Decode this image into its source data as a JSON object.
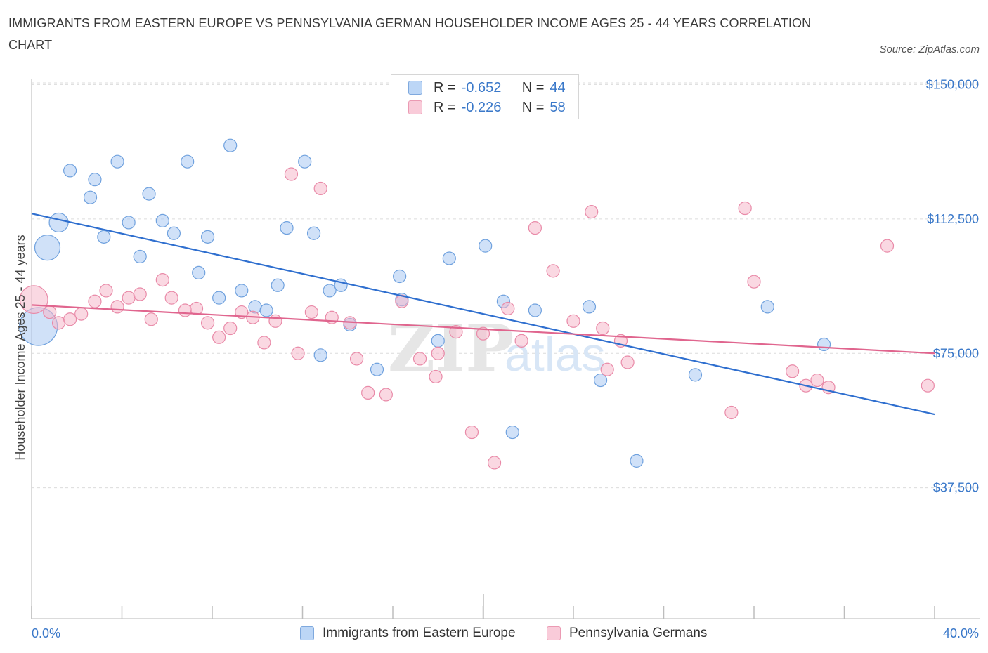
{
  "title": "IMMIGRANTS FROM EASTERN EUROPE VS PENNSYLVANIA GERMAN HOUSEHOLDER INCOME AGES 25 - 44 YEARS CORRELATION CHART",
  "source": "Source: ZipAtlas.com",
  "watermark": {
    "zip": "ZIP",
    "atlas": "atlas"
  },
  "legend": {
    "r_label": "R =",
    "n_label": "N =",
    "rows": [
      {
        "r": "-0.652",
        "n": "44",
        "color": "#a9c9f2"
      },
      {
        "r": "-0.226",
        "n": "58",
        "color": "#f6b8cb"
      }
    ]
  },
  "chart_data": {
    "type": "scatter",
    "xlabel": "",
    "ylabel": "Householder Income Ages 25 - 44 years",
    "x_ticks": [
      "0.0%",
      "40.0%"
    ],
    "y_ticks": [
      "$150,000",
      "$112,500",
      "$75,000",
      "$37,500"
    ],
    "xlim": [
      0,
      40
    ],
    "ylim": [
      1000,
      154000
    ],
    "grid": true,
    "series": [
      {
        "name": "Immigrants from Eastern Europe",
        "color": "#a9c9f2",
        "stroke": "#6fa1de",
        "line_color": "#2f6fcf",
        "trend": {
          "x0": 0,
          "y0": 114000,
          "x1": 40,
          "y1": 58000
        },
        "points": [
          [
            0.3,
            82500,
            3
          ],
          [
            0.7,
            104500,
            2
          ],
          [
            1.2,
            111500,
            1.5
          ],
          [
            1.7,
            126000,
            1
          ],
          [
            2.6,
            118500,
            1
          ],
          [
            2.8,
            123500,
            1
          ],
          [
            3.2,
            107500,
            1
          ],
          [
            3.8,
            128500,
            1
          ],
          [
            4.3,
            111500,
            1
          ],
          [
            4.8,
            102000,
            1
          ],
          [
            5.2,
            119500,
            1
          ],
          [
            5.8,
            112000,
            1
          ],
          [
            6.3,
            108500,
            1
          ],
          [
            6.9,
            128500,
            1
          ],
          [
            7.4,
            97500,
            1
          ],
          [
            7.8,
            107500,
            1
          ],
          [
            8.3,
            90500,
            1
          ],
          [
            8.8,
            133000,
            1
          ],
          [
            9.3,
            92500,
            1
          ],
          [
            9.9,
            88000,
            1
          ],
          [
            10.4,
            87000,
            1
          ],
          [
            10.9,
            94000,
            1
          ],
          [
            11.3,
            110000,
            1
          ],
          [
            12.1,
            128500,
            1
          ],
          [
            12.5,
            108500,
            1
          ],
          [
            12.8,
            74500,
            1
          ],
          [
            13.2,
            92500,
            1
          ],
          [
            13.7,
            94000,
            1
          ],
          [
            14.1,
            83000,
            1
          ],
          [
            15.3,
            70500,
            1
          ],
          [
            16.3,
            96500,
            1
          ],
          [
            16.4,
            90000,
            1
          ],
          [
            18.0,
            78500,
            1
          ],
          [
            18.5,
            101500,
            1
          ],
          [
            20.1,
            105000,
            1
          ],
          [
            20.9,
            89500,
            1
          ],
          [
            21.3,
            53000,
            1
          ],
          [
            22.3,
            87000,
            1
          ],
          [
            24.7,
            88000,
            1
          ],
          [
            25.2,
            67500,
            1
          ],
          [
            26.8,
            45000,
            1
          ],
          [
            29.4,
            69000,
            1
          ],
          [
            32.6,
            88000,
            1
          ],
          [
            35.1,
            77500,
            1
          ]
        ]
      },
      {
        "name": "Pennsylvania Germans",
        "color": "#f6b8cb",
        "stroke": "#e98aa8",
        "line_color": "#e0658e",
        "trend": {
          "x0": 0,
          "y0": 88500,
          "x1": 40,
          "y1": 75000
        },
        "points": [
          [
            0.1,
            90000,
            2.2
          ],
          [
            0.8,
            86500,
            1
          ],
          [
            1.2,
            83500,
            1
          ],
          [
            1.7,
            84500,
            1
          ],
          [
            2.2,
            86000,
            1
          ],
          [
            2.8,
            89500,
            1
          ],
          [
            3.3,
            92500,
            1
          ],
          [
            3.8,
            88000,
            1
          ],
          [
            4.3,
            90500,
            1
          ],
          [
            4.8,
            91500,
            1
          ],
          [
            5.3,
            84500,
            1
          ],
          [
            5.8,
            95500,
            1
          ],
          [
            6.2,
            90500,
            1
          ],
          [
            6.8,
            87000,
            1
          ],
          [
            7.3,
            87500,
            1
          ],
          [
            7.8,
            83500,
            1
          ],
          [
            8.3,
            79500,
            1
          ],
          [
            8.8,
            82000,
            1
          ],
          [
            9.3,
            86500,
            1
          ],
          [
            9.8,
            85000,
            1
          ],
          [
            10.3,
            78000,
            1
          ],
          [
            10.8,
            84000,
            1
          ],
          [
            11.5,
            125000,
            1
          ],
          [
            11.8,
            75000,
            1
          ],
          [
            12.4,
            86500,
            1
          ],
          [
            12.8,
            121000,
            1
          ],
          [
            13.3,
            85000,
            1
          ],
          [
            14.1,
            83500,
            1
          ],
          [
            14.4,
            73500,
            1
          ],
          [
            14.9,
            64000,
            1
          ],
          [
            15.7,
            63500,
            1
          ],
          [
            16.4,
            89500,
            1
          ],
          [
            17.2,
            73500,
            1
          ],
          [
            17.9,
            68500,
            1
          ],
          [
            18.0,
            75000,
            1
          ],
          [
            18.8,
            81000,
            1
          ],
          [
            19.5,
            53000,
            1
          ],
          [
            20.0,
            80500,
            1
          ],
          [
            20.5,
            44500,
            1
          ],
          [
            21.1,
            87500,
            1
          ],
          [
            21.7,
            78500,
            1
          ],
          [
            22.3,
            110000,
            1
          ],
          [
            23.1,
            98000,
            1
          ],
          [
            24.0,
            84000,
            1
          ],
          [
            24.8,
            114500,
            1
          ],
          [
            25.3,
            82000,
            1
          ],
          [
            25.5,
            70500,
            1
          ],
          [
            26.1,
            78500,
            1
          ],
          [
            26.4,
            72500,
            1
          ],
          [
            31.0,
            58500,
            1
          ],
          [
            31.6,
            115500,
            1
          ],
          [
            32.0,
            95000,
            1
          ],
          [
            33.7,
            70000,
            1
          ],
          [
            34.3,
            66000,
            1
          ],
          [
            34.8,
            67500,
            1
          ],
          [
            35.3,
            65500,
            1
          ],
          [
            37.9,
            105000,
            1
          ],
          [
            39.7,
            66000,
            1
          ]
        ]
      }
    ]
  }
}
